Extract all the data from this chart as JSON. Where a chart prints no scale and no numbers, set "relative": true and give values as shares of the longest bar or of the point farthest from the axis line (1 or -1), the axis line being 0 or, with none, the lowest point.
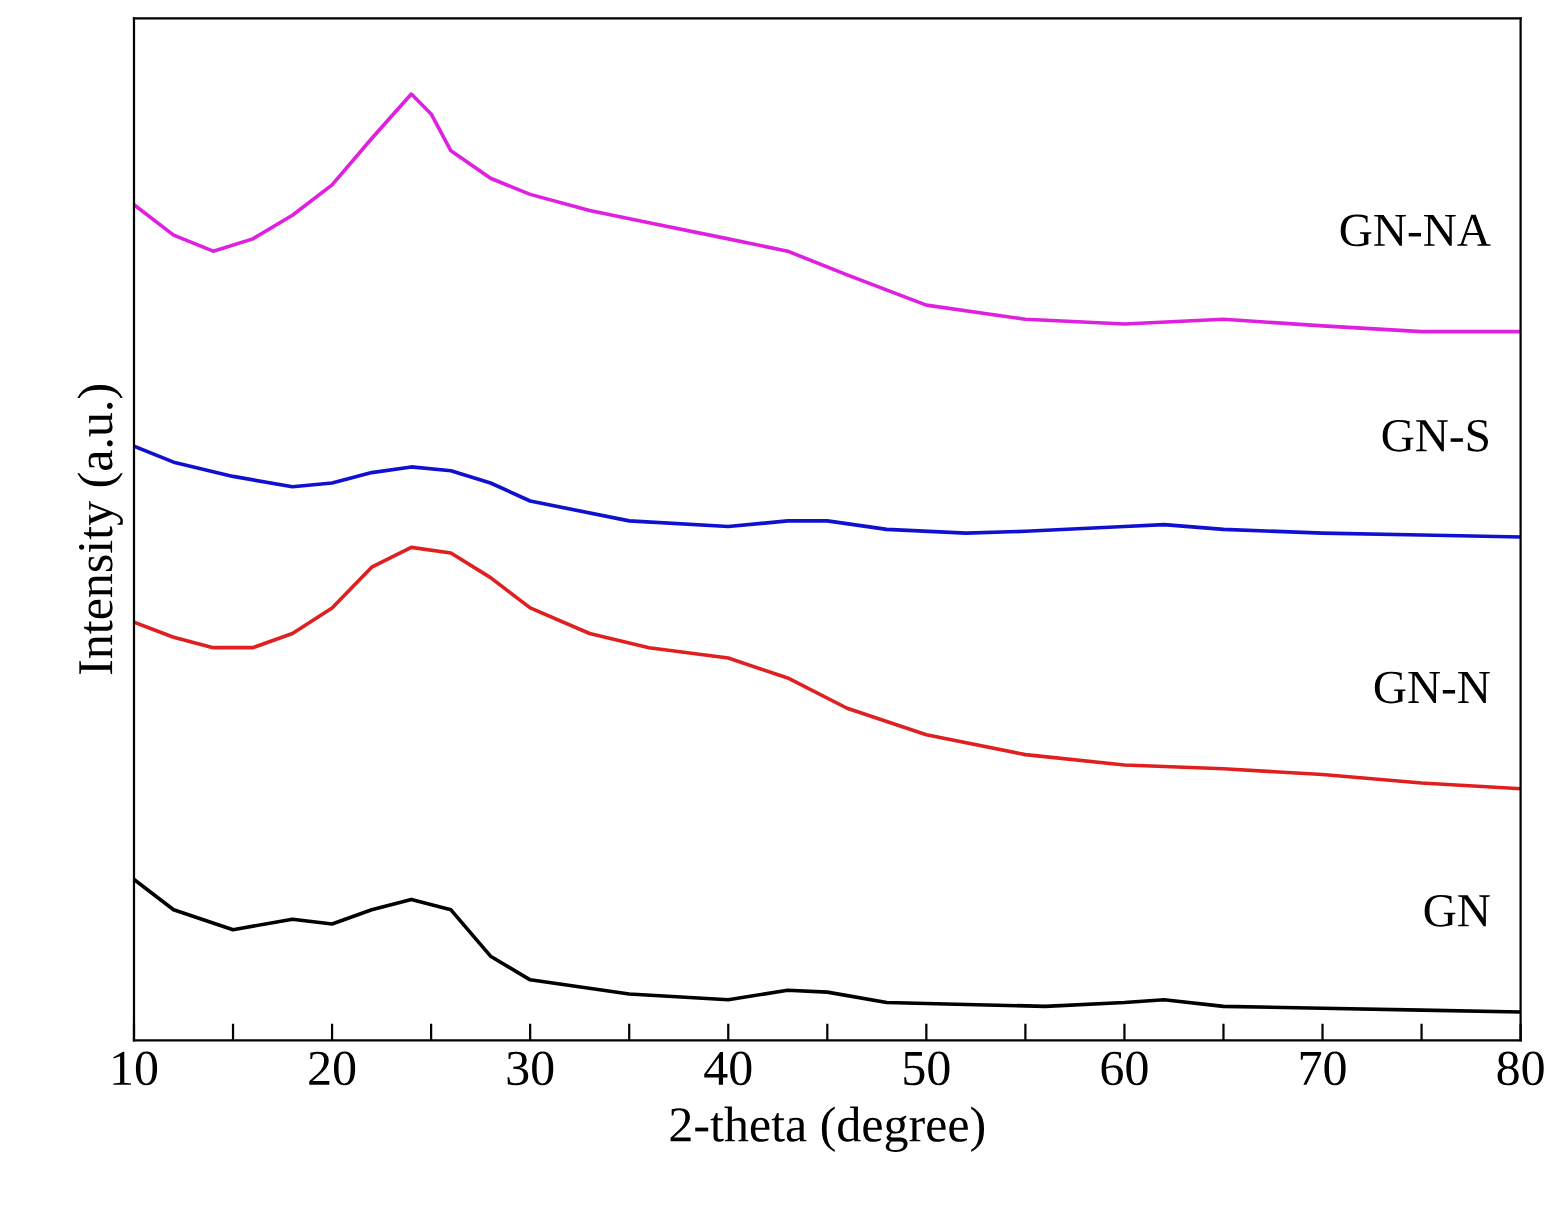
{
  "chart_data": {
    "type": "line",
    "relative": true,
    "xlabel": "2-theta (degree)",
    "ylabel": "Intensity (a.u.)",
    "xlim": [
      10,
      80
    ],
    "xticks": [
      10,
      {
        "value": 15,
        "label": null
      },
      20,
      {
        "value": 25,
        "label": null
      },
      30,
      {
        "value": 35,
        "label": null
      },
      40,
      {
        "value": 45,
        "label": null
      },
      50,
      {
        "value": 55,
        "label": null
      },
      60,
      {
        "value": 65,
        "label": null
      },
      70,
      {
        "value": 75,
        "label": null
      },
      80
    ],
    "legend": false,
    "marker": "none",
    "line_style": "solid",
    "tick_labels": "x",
    "series": [
      {
        "name": "GN-NA",
        "color": "#e020e0",
        "x": [
          10,
          12,
          14,
          16,
          18,
          20,
          22,
          24,
          25,
          26,
          28,
          30,
          33,
          36,
          40,
          43,
          46,
          50,
          55,
          60,
          65,
          70,
          75,
          80
        ],
        "values": [
          0.883,
          0.851,
          0.834,
          0.847,
          0.872,
          0.904,
          0.953,
          1.0,
          0.979,
          0.94,
          0.911,
          0.894,
          0.877,
          0.864,
          0.847,
          0.834,
          0.809,
          0.777,
          0.762,
          0.757,
          0.762,
          0.755,
          0.749,
          0.749
        ]
      },
      {
        "name": "GN-S",
        "color": "#1010d0",
        "x": [
          10,
          12,
          15,
          18,
          20,
          22,
          24,
          26,
          28,
          30,
          35,
          40,
          43,
          45,
          48,
          52,
          55,
          60,
          62,
          65,
          70,
          75,
          80
        ],
        "values": [
          0.628,
          0.611,
          0.596,
          0.585,
          0.589,
          0.6,
          0.606,
          0.602,
          0.589,
          0.57,
          0.549,
          0.543,
          0.549,
          0.549,
          0.54,
          0.536,
          0.538,
          0.543,
          0.545,
          0.54,
          0.536,
          0.534,
          0.532
        ]
      },
      {
        "name": "GN-N",
        "color": "#e02020",
        "x": [
          10,
          12,
          14,
          16,
          18,
          20,
          22,
          24,
          26,
          28,
          30,
          33,
          36,
          40,
          43,
          46,
          50,
          55,
          60,
          65,
          70,
          75,
          80
        ],
        "values": [
          0.442,
          0.426,
          0.415,
          0.415,
          0.43,
          0.457,
          0.5,
          0.521,
          0.515,
          0.489,
          0.457,
          0.43,
          0.415,
          0.404,
          0.383,
          0.351,
          0.323,
          0.302,
          0.291,
          0.287,
          0.281,
          0.272,
          0.266
        ]
      },
      {
        "name": "GN",
        "color": "#000000",
        "x": [
          10,
          12,
          15,
          18,
          20,
          22,
          24,
          26,
          28,
          30,
          35,
          40,
          43,
          45,
          48,
          52,
          56,
          60,
          62,
          65,
          70,
          75,
          80
        ],
        "values": [
          0.17,
          0.138,
          0.117,
          0.128,
          0.123,
          0.138,
          0.149,
          0.138,
          0.089,
          0.064,
          0.049,
          0.043,
          0.053,
          0.051,
          0.04,
          0.038,
          0.036,
          0.04,
          0.043,
          0.036,
          0.034,
          0.032,
          0.03
        ]
      }
    ]
  }
}
